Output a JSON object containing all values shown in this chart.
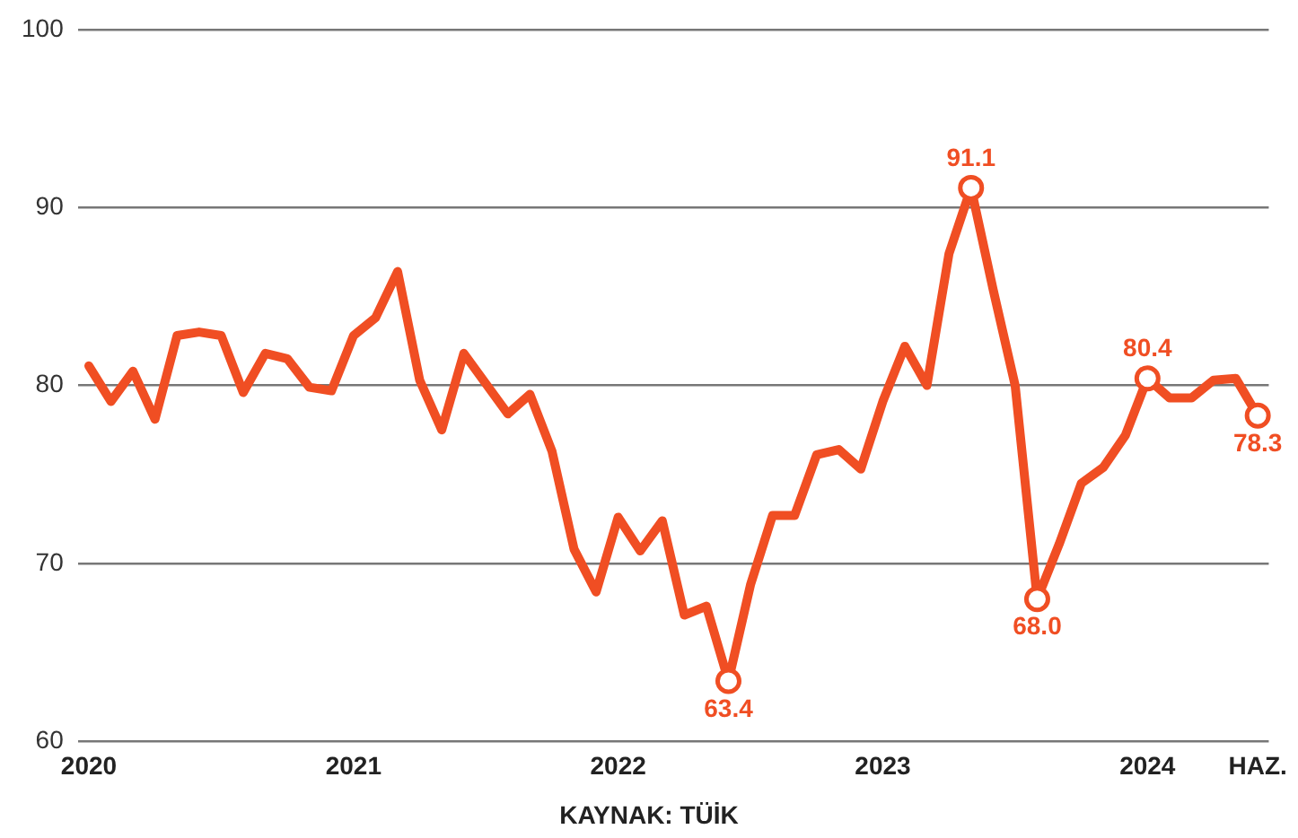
{
  "chart_data": {
    "type": "line",
    "categories": [
      "2020",
      null,
      null,
      null,
      null,
      null,
      null,
      null,
      null,
      null,
      null,
      null,
      "2021",
      null,
      null,
      null,
      null,
      null,
      null,
      null,
      null,
      null,
      null,
      null,
      "2022",
      null,
      null,
      null,
      null,
      null,
      null,
      null,
      null,
      null,
      null,
      null,
      "2023",
      null,
      null,
      null,
      null,
      null,
      null,
      null,
      null,
      null,
      null,
      null,
      "2024",
      null,
      null,
      null,
      null,
      "HAZ."
    ],
    "series": [
      {
        "color": "#f04e23",
        "values": [
          81.1,
          79.1,
          80.8,
          78.1,
          82.8,
          83.0,
          82.8,
          79.6,
          81.8,
          81.5,
          79.9,
          79.7,
          82.8,
          83.8,
          86.4,
          80.3,
          77.5,
          81.8,
          80.1,
          78.4,
          79.5,
          76.3,
          70.8,
          68.4,
          72.6,
          70.7,
          72.4,
          67.1,
          67.6,
          63.4,
          68.8,
          72.7,
          72.7,
          76.1,
          76.4,
          75.3,
          79.1,
          82.2,
          80.0,
          87.4,
          91.1,
          85.4,
          80.0,
          68.0,
          71.1,
          74.5,
          75.4,
          77.2,
          80.4,
          79.3,
          79.3,
          80.3,
          80.4,
          78.3
        ],
        "value_labels": [
          null,
          null,
          null,
          null,
          null,
          null,
          null,
          null,
          null,
          null,
          null,
          null,
          null,
          null,
          null,
          null,
          null,
          null,
          null,
          null,
          null,
          null,
          null,
          null,
          null,
          null,
          null,
          null,
          null,
          "63.4",
          null,
          null,
          null,
          null,
          null,
          null,
          null,
          null,
          null,
          null,
          "91.1",
          null,
          null,
          "68.0",
          null,
          null,
          null,
          null,
          "80.4",
          null,
          null,
          null,
          null,
          "78.3"
        ]
      }
    ],
    "ylim": [
      60,
      100
    ],
    "yticks": [
      60,
      70,
      80,
      90,
      100
    ],
    "grid": "y",
    "legend": false,
    "line_style": "solid",
    "annotations": [
      "KAYNAK: TÜİK"
    ]
  }
}
